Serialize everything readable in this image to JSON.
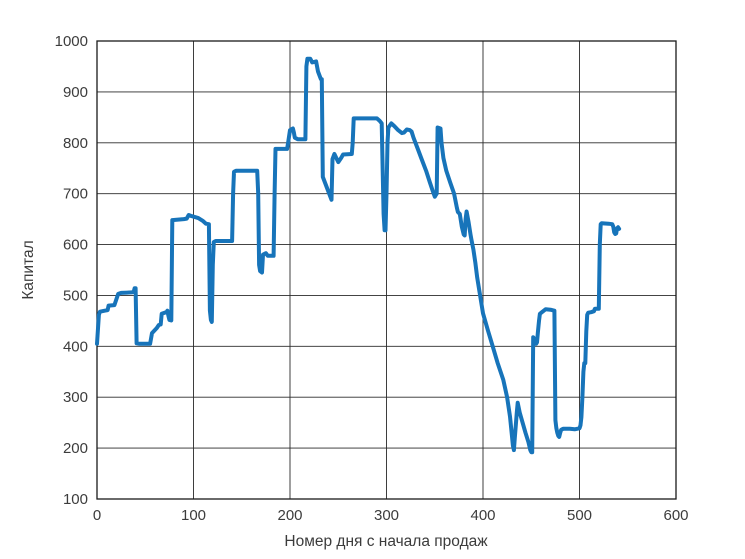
{
  "figure": {
    "background_color": "#ffffff"
  },
  "chart_data": {
    "type": "line",
    "title": "",
    "xlabel": "Номер дня с начала продаж",
    "ylabel": "Капитал",
    "xlim": [
      0,
      600
    ],
    "ylim": [
      100,
      1000
    ],
    "xticks": [
      0,
      100,
      200,
      300,
      400,
      500,
      600
    ],
    "yticks": [
      100,
      200,
      300,
      400,
      500,
      600,
      700,
      800,
      900,
      1000
    ],
    "grid": true,
    "grid_color": "#2a2a2a",
    "border_color": "#1a1a1a",
    "line_color": "#1774ba",
    "line_width": 4,
    "series": [
      {
        "name": "capital",
        "points": [
          [
            0,
            405
          ],
          [
            2,
            462
          ],
          [
            3,
            468
          ],
          [
            8,
            470
          ],
          [
            11,
            471
          ],
          [
            12,
            480
          ],
          [
            18,
            481
          ],
          [
            20,
            492
          ],
          [
            22,
            503
          ],
          [
            25,
            505
          ],
          [
            36,
            506
          ],
          [
            38,
            507
          ],
          [
            39,
            514
          ],
          [
            40,
            514
          ],
          [
            41,
            406
          ],
          [
            44,
            405
          ],
          [
            55,
            405
          ],
          [
            57,
            426
          ],
          [
            62,
            436
          ],
          [
            64,
            442
          ],
          [
            66,
            443
          ],
          [
            67,
            464
          ],
          [
            70,
            466
          ],
          [
            72,
            467
          ],
          [
            73,
            470
          ],
          [
            74,
            460
          ],
          [
            75,
            452
          ],
          [
            77,
            451
          ],
          [
            78,
            648
          ],
          [
            90,
            650
          ],
          [
            93,
            651
          ],
          [
            95,
            658
          ],
          [
            98,
            656
          ],
          [
            105,
            652
          ],
          [
            110,
            646
          ],
          [
            113,
            641
          ],
          [
            116,
            640
          ],
          [
            117,
            470
          ],
          [
            118,
            452
          ],
          [
            119,
            448
          ],
          [
            120,
            560
          ],
          [
            121,
            605
          ],
          [
            123,
            607
          ],
          [
            140,
            607
          ],
          [
            141,
            700
          ],
          [
            142,
            743
          ],
          [
            144,
            745
          ],
          [
            166,
            745
          ],
          [
            167,
            700
          ],
          [
            168,
            560
          ],
          [
            169,
            548
          ],
          [
            171,
            545
          ],
          [
            172,
            580
          ],
          [
            175,
            583
          ],
          [
            177,
            578
          ],
          [
            183,
            578
          ],
          [
            184,
            700
          ],
          [
            185,
            788
          ],
          [
            197,
            788
          ],
          [
            198,
            800
          ],
          [
            200,
            825
          ],
          [
            203,
            828
          ],
          [
            204,
            820
          ],
          [
            205,
            810
          ],
          [
            208,
            807
          ],
          [
            216,
            807
          ],
          [
            217,
            950
          ],
          [
            218,
            965
          ],
          [
            221,
            965
          ],
          [
            223,
            958
          ],
          [
            227,
            960
          ],
          [
            229,
            940
          ],
          [
            232,
            925
          ],
          [
            233,
            925
          ],
          [
            234,
            733
          ],
          [
            237,
            718
          ],
          [
            240,
            703
          ],
          [
            243,
            688
          ],
          [
            244,
            768
          ],
          [
            246,
            778
          ],
          [
            248,
            770
          ],
          [
            250,
            762
          ],
          [
            253,
            770
          ],
          [
            255,
            777
          ],
          [
            264,
            778
          ],
          [
            265,
            800
          ],
          [
            266,
            848
          ],
          [
            290,
            848
          ],
          [
            293,
            843
          ],
          [
            295,
            838
          ],
          [
            297,
            660
          ],
          [
            298,
            628
          ],
          [
            299,
            628
          ],
          [
            300,
            700
          ],
          [
            301,
            800
          ],
          [
            302,
            830
          ],
          [
            305,
            838
          ],
          [
            308,
            833
          ],
          [
            312,
            825
          ],
          [
            316,
            819
          ],
          [
            318,
            820
          ],
          [
            321,
            826
          ],
          [
            324,
            825
          ],
          [
            326,
            822
          ],
          [
            328,
            810
          ],
          [
            332,
            790
          ],
          [
            336,
            770
          ],
          [
            341,
            745
          ],
          [
            345,
            722
          ],
          [
            348,
            705
          ],
          [
            350,
            694
          ],
          [
            351,
            697
          ],
          [
            352,
            700
          ],
          [
            353,
            830
          ],
          [
            356,
            828
          ],
          [
            357,
            800
          ],
          [
            359,
            770
          ],
          [
            362,
            745
          ],
          [
            366,
            722
          ],
          [
            370,
            700
          ],
          [
            373,
            672
          ],
          [
            374,
            664
          ],
          [
            376,
            660
          ],
          [
            378,
            635
          ],
          [
            380,
            620
          ],
          [
            381,
            618
          ],
          [
            382,
            650
          ],
          [
            383,
            665
          ],
          [
            385,
            645
          ],
          [
            387,
            620
          ],
          [
            388,
            610
          ],
          [
            390,
            590
          ],
          [
            392,
            565
          ],
          [
            394,
            535
          ],
          [
            397,
            500
          ],
          [
            400,
            465
          ],
          [
            405,
            432
          ],
          [
            410,
            400
          ],
          [
            415,
            368
          ],
          [
            421,
            334
          ],
          [
            425,
            300
          ],
          [
            428,
            262
          ],
          [
            430,
            225
          ],
          [
            431,
            205
          ],
          [
            432,
            196
          ],
          [
            433,
            220
          ],
          [
            434,
            245
          ],
          [
            435,
            270
          ],
          [
            436,
            289
          ],
          [
            438,
            270
          ],
          [
            441,
            250
          ],
          [
            444,
            230
          ],
          [
            447,
            212
          ],
          [
            449,
            196
          ],
          [
            450,
            192
          ],
          [
            451,
            192
          ],
          [
            452,
            418
          ],
          [
            453,
            415
          ],
          [
            455,
            405
          ],
          [
            456,
            408
          ],
          [
            457,
            430
          ],
          [
            458,
            450
          ],
          [
            459,
            464
          ],
          [
            461,
            467
          ],
          [
            463,
            470
          ],
          [
            465,
            473
          ],
          [
            470,
            472
          ],
          [
            474,
            470
          ],
          [
            475,
            255
          ],
          [
            476,
            240
          ],
          [
            477,
            230
          ],
          [
            478,
            224
          ],
          [
            479,
            222
          ],
          [
            480,
            230
          ],
          [
            481,
            236
          ],
          [
            483,
            238
          ],
          [
            490,
            238
          ],
          [
            495,
            237
          ],
          [
            500,
            239
          ],
          [
            501,
            245
          ],
          [
            502,
            261
          ],
          [
            503,
            300
          ],
          [
            504,
            350
          ],
          [
            505,
            367
          ],
          [
            506,
            367
          ],
          [
            507,
            430
          ],
          [
            508,
            462
          ],
          [
            509,
            466
          ],
          [
            512,
            467
          ],
          [
            515,
            469
          ],
          [
            516,
            474
          ],
          [
            520,
            474
          ],
          [
            521,
            600
          ],
          [
            522,
            640
          ],
          [
            523,
            642
          ],
          [
            530,
            641
          ],
          [
            534,
            640
          ],
          [
            535,
            635
          ],
          [
            536,
            624
          ],
          [
            537,
            621
          ],
          [
            538,
            622
          ],
          [
            539,
            632
          ],
          [
            540,
            634
          ],
          [
            541,
            631
          ]
        ]
      }
    ]
  }
}
